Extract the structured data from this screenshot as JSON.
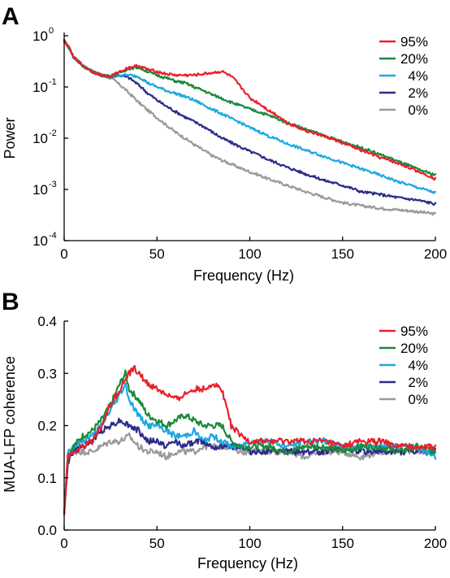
{
  "colors": {
    "95%": "#e8212b",
    "20%": "#1a8a3c",
    "4%": "#1ca9e1",
    "2%": "#2b2d87",
    "0%": "#9a9a9a"
  },
  "chart_data": [
    {
      "panel": "A",
      "type": "line",
      "xlabel": "Frequency (Hz)",
      "ylabel": "Power",
      "xlim": [
        0,
        200
      ],
      "ylim": [
        0.0001,
        1
      ],
      "yscale": "log",
      "x_ticks": [
        "0",
        "50",
        "100",
        "150",
        "200"
      ],
      "y_ticks": [
        {
          "base": "10",
          "exp": "0"
        },
        {
          "base": "10",
          "exp": "-1"
        },
        {
          "base": "10",
          "exp": "-2"
        },
        {
          "base": "10",
          "exp": "-3"
        },
        {
          "base": "10",
          "exp": "-4"
        }
      ],
      "legend_position": "top-right",
      "grid": false,
      "series": [
        {
          "name": "95%",
          "x": [
            0,
            5,
            10,
            15,
            20,
            25,
            30,
            35,
            40,
            45,
            50,
            55,
            60,
            65,
            70,
            75,
            80,
            85,
            90,
            95,
            100,
            110,
            120,
            130,
            140,
            150,
            160,
            170,
            180,
            190,
            200
          ],
          "y": [
            0.8,
            0.38,
            0.26,
            0.2,
            0.17,
            0.16,
            0.2,
            0.24,
            0.26,
            0.22,
            0.2,
            0.18,
            0.17,
            0.17,
            0.17,
            0.18,
            0.19,
            0.2,
            0.16,
            0.1,
            0.06,
            0.035,
            0.02,
            0.014,
            0.011,
            0.008,
            0.0058,
            0.0042,
            0.0032,
            0.0023,
            0.0016
          ]
        },
        {
          "name": "20%",
          "x": [
            0,
            5,
            10,
            15,
            20,
            25,
            30,
            35,
            40,
            45,
            50,
            55,
            60,
            65,
            70,
            75,
            80,
            85,
            90,
            95,
            100,
            110,
            120,
            130,
            140,
            150,
            160,
            170,
            180,
            190,
            200
          ],
          "y": [
            0.8,
            0.38,
            0.26,
            0.2,
            0.17,
            0.16,
            0.19,
            0.23,
            0.24,
            0.2,
            0.17,
            0.15,
            0.13,
            0.12,
            0.1,
            0.085,
            0.07,
            0.06,
            0.05,
            0.043,
            0.037,
            0.028,
            0.02,
            0.015,
            0.011,
            0.0085,
            0.0065,
            0.0048,
            0.0035,
            0.0025,
            0.0019
          ]
        },
        {
          "name": "4%",
          "x": [
            0,
            5,
            10,
            15,
            20,
            25,
            30,
            35,
            40,
            45,
            50,
            55,
            60,
            65,
            70,
            75,
            80,
            85,
            90,
            95,
            100,
            110,
            120,
            130,
            140,
            150,
            160,
            170,
            180,
            190,
            200
          ],
          "y": [
            0.8,
            0.38,
            0.26,
            0.2,
            0.17,
            0.16,
            0.17,
            0.17,
            0.16,
            0.12,
            0.1,
            0.085,
            0.075,
            0.065,
            0.055,
            0.045,
            0.036,
            0.03,
            0.024,
            0.02,
            0.016,
            0.011,
            0.0078,
            0.0058,
            0.0044,
            0.0033,
            0.0025,
            0.0019,
            0.0014,
            0.0011,
            0.00085
          ]
        },
        {
          "name": "2%",
          "x": [
            0,
            5,
            10,
            15,
            20,
            25,
            30,
            35,
            40,
            45,
            50,
            55,
            60,
            65,
            70,
            75,
            80,
            85,
            90,
            95,
            100,
            110,
            120,
            130,
            140,
            150,
            160,
            170,
            180,
            190,
            200
          ],
          "y": [
            0.8,
            0.38,
            0.26,
            0.2,
            0.17,
            0.16,
            0.17,
            0.15,
            0.11,
            0.075,
            0.055,
            0.042,
            0.033,
            0.026,
            0.021,
            0.017,
            0.013,
            0.01,
            0.0082,
            0.0067,
            0.0055,
            0.0038,
            0.0027,
            0.002,
            0.0015,
            0.0012,
            0.0009,
            0.0008,
            0.00069,
            0.00062,
            0.00052
          ]
        },
        {
          "name": "0%",
          "x": [
            0,
            5,
            10,
            15,
            20,
            25,
            30,
            35,
            40,
            45,
            50,
            55,
            60,
            65,
            70,
            75,
            80,
            85,
            90,
            95,
            100,
            110,
            120,
            130,
            140,
            150,
            160,
            170,
            180,
            190,
            200
          ],
          "y": [
            0.8,
            0.38,
            0.26,
            0.2,
            0.17,
            0.15,
            0.11,
            0.075,
            0.05,
            0.035,
            0.025,
            0.018,
            0.013,
            0.01,
            0.0075,
            0.0058,
            0.0045,
            0.0037,
            0.0031,
            0.0026,
            0.0022,
            0.0016,
            0.0012,
            0.0009,
            0.0007,
            0.00055,
            0.00048,
            0.00043,
            0.0004,
            0.00037,
            0.00033
          ]
        }
      ]
    },
    {
      "panel": "B",
      "type": "line",
      "xlabel": "Frequency (Hz)",
      "ylabel": "MUA-LFP coherence",
      "xlim": [
        0,
        200
      ],
      "ylim": [
        0,
        0.4
      ],
      "x_ticks": [
        "0",
        "50",
        "100",
        "150",
        "200"
      ],
      "y_ticks": [
        "0.0",
        "0.1",
        "0.2",
        "0.3",
        "0.4"
      ],
      "legend_position": "top-right",
      "grid": false,
      "series": [
        {
          "name": "95%",
          "x": [
            0,
            2,
            5,
            10,
            15,
            20,
            25,
            30,
            35,
            38,
            40,
            45,
            50,
            55,
            60,
            65,
            70,
            75,
            80,
            85,
            90,
            95,
            100,
            110,
            120,
            130,
            140,
            150,
            160,
            170,
            180,
            190,
            200
          ],
          "y": [
            0.03,
            0.14,
            0.15,
            0.16,
            0.17,
            0.2,
            0.24,
            0.27,
            0.3,
            0.31,
            0.3,
            0.28,
            0.27,
            0.26,
            0.25,
            0.26,
            0.27,
            0.27,
            0.28,
            0.27,
            0.2,
            0.18,
            0.17,
            0.17,
            0.17,
            0.17,
            0.17,
            0.16,
            0.17,
            0.17,
            0.16,
            0.16,
            0.16
          ]
        },
        {
          "name": "20%",
          "x": [
            0,
            2,
            5,
            10,
            15,
            20,
            25,
            30,
            33,
            35,
            40,
            45,
            50,
            55,
            60,
            65,
            70,
            75,
            80,
            85,
            90,
            95,
            100,
            110,
            120,
            130,
            140,
            150,
            160,
            170,
            180,
            190,
            200
          ],
          "y": [
            0.03,
            0.14,
            0.16,
            0.18,
            0.19,
            0.21,
            0.24,
            0.28,
            0.3,
            0.27,
            0.25,
            0.22,
            0.21,
            0.2,
            0.21,
            0.22,
            0.21,
            0.2,
            0.2,
            0.2,
            0.17,
            0.16,
            0.16,
            0.16,
            0.15,
            0.16,
            0.16,
            0.15,
            0.16,
            0.16,
            0.15,
            0.16,
            0.15
          ]
        },
        {
          "name": "4%",
          "x": [
            0,
            2,
            5,
            10,
            15,
            20,
            25,
            30,
            33,
            35,
            40,
            45,
            50,
            55,
            60,
            65,
            70,
            75,
            80,
            85,
            90,
            95,
            100,
            110,
            120,
            130,
            140,
            150,
            160,
            170,
            180,
            190,
            200
          ],
          "y": [
            0.03,
            0.15,
            0.16,
            0.17,
            0.18,
            0.2,
            0.23,
            0.26,
            0.28,
            0.25,
            0.22,
            0.2,
            0.2,
            0.19,
            0.18,
            0.18,
            0.19,
            0.17,
            0.18,
            0.17,
            0.16,
            0.16,
            0.17,
            0.17,
            0.16,
            0.17,
            0.17,
            0.16,
            0.16,
            0.16,
            0.16,
            0.16,
            0.14
          ]
        },
        {
          "name": "2%",
          "x": [
            0,
            2,
            5,
            10,
            15,
            20,
            25,
            30,
            35,
            40,
            45,
            50,
            55,
            60,
            65,
            70,
            75,
            80,
            85,
            90,
            95,
            100,
            110,
            120,
            130,
            140,
            150,
            160,
            170,
            180,
            190,
            200
          ],
          "y": [
            0.03,
            0.13,
            0.15,
            0.16,
            0.17,
            0.19,
            0.2,
            0.21,
            0.2,
            0.19,
            0.17,
            0.17,
            0.16,
            0.17,
            0.16,
            0.17,
            0.17,
            0.16,
            0.16,
            0.16,
            0.16,
            0.15,
            0.15,
            0.15,
            0.15,
            0.15,
            0.16,
            0.15,
            0.15,
            0.15,
            0.15,
            0.15
          ]
        },
        {
          "name": "0%",
          "x": [
            0,
            2,
            5,
            10,
            15,
            20,
            25,
            30,
            35,
            40,
            45,
            50,
            55,
            60,
            65,
            70,
            75,
            80,
            85,
            90,
            95,
            100,
            110,
            120,
            130,
            140,
            150,
            160,
            170,
            180,
            190,
            200
          ],
          "y": [
            0.03,
            0.14,
            0.15,
            0.15,
            0.15,
            0.16,
            0.17,
            0.17,
            0.18,
            0.16,
            0.15,
            0.15,
            0.14,
            0.15,
            0.15,
            0.15,
            0.16,
            0.16,
            0.16,
            0.16,
            0.15,
            0.15,
            0.15,
            0.15,
            0.14,
            0.15,
            0.15,
            0.14,
            0.15,
            0.15,
            0.15,
            0.15
          ]
        }
      ]
    }
  ],
  "panels": {
    "a_letter": "A",
    "b_letter": "B"
  }
}
